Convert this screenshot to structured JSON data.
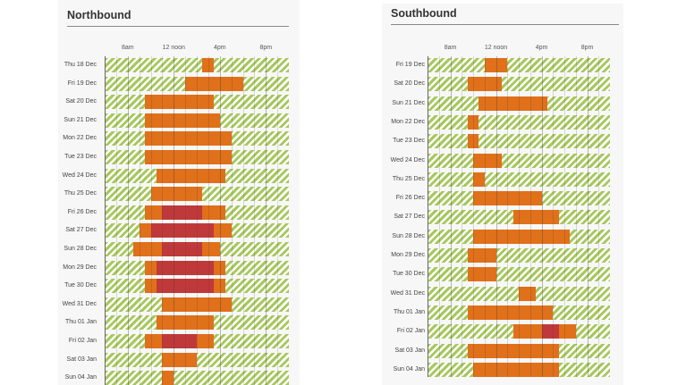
{
  "colors": {
    "free_flow": "#a6c85c",
    "congestion": "#e0701a",
    "severe": "#c0393a"
  },
  "chart_data": [
    {
      "type": "bar",
      "subtype": "horizontal-range",
      "title": "Northbound",
      "x_range_hours": [
        6,
        22
      ],
      "x_ticks": [
        {
          "hour": 8,
          "label": "8am"
        },
        {
          "hour": 12,
          "label": "12 noon"
        },
        {
          "hour": 16,
          "label": "4pm"
        },
        {
          "hour": 20,
          "label": "8pm"
        }
      ],
      "grid": true,
      "rows": [
        {
          "label": "Thu 18 Dec",
          "congestion": [
            14.5,
            15.5
          ],
          "severe": null
        },
        {
          "label": "Fri 19 Dec",
          "congestion": [
            13,
            18
          ],
          "severe": null
        },
        {
          "label": "Sat 20 Dec",
          "congestion": [
            9.5,
            15.5
          ],
          "severe": null
        },
        {
          "label": "Sun 21 Dec",
          "congestion": [
            9.5,
            16
          ],
          "severe": null
        },
        {
          "label": "Mon 22 Dec",
          "congestion": [
            9.5,
            17
          ],
          "severe": null
        },
        {
          "label": "Tue 23 Dec",
          "congestion": [
            9.5,
            17
          ],
          "severe": null
        },
        {
          "label": "Wed 24 Dec",
          "congestion": [
            10.5,
            16.5
          ],
          "severe": null
        },
        {
          "label": "Thu 25 Dec",
          "congestion": [
            10,
            14.5
          ],
          "severe": null
        },
        {
          "label": "Fri 26 Dec",
          "congestion": [
            9.5,
            16.5
          ],
          "severe": [
            11,
            14.5
          ]
        },
        {
          "label": "Sat 27 Dec",
          "congestion": [
            9,
            17
          ],
          "severe": [
            10,
            15.5
          ]
        },
        {
          "label": "Sun 28 Dec",
          "congestion": [
            8.5,
            16
          ],
          "severe": [
            11,
            14.5
          ]
        },
        {
          "label": "Mon 29 Dec",
          "congestion": [
            9.5,
            16.5
          ],
          "severe": [
            10.5,
            15.5
          ]
        },
        {
          "label": "Tue 30 Dec",
          "congestion": [
            9.5,
            16.5
          ],
          "severe": [
            10.5,
            15.5
          ]
        },
        {
          "label": "Wed 31 Dec",
          "congestion": [
            11,
            17
          ],
          "severe": null
        },
        {
          "label": "Thu 01 Jan",
          "congestion": [
            10.5,
            15.5
          ],
          "severe": null
        },
        {
          "label": "Fri 02 Jan",
          "congestion": [
            9.5,
            15.5
          ],
          "severe": [
            11,
            14
          ]
        },
        {
          "label": "Sat 03 Jan",
          "congestion": [
            11,
            14
          ],
          "severe": null
        },
        {
          "label": "Sun 04 Jan",
          "congestion": [
            11,
            12
          ],
          "severe": null
        }
      ]
    },
    {
      "type": "bar",
      "subtype": "horizontal-range",
      "title": "Southbound",
      "x_range_hours": [
        6,
        22
      ],
      "x_ticks": [
        {
          "hour": 8,
          "label": "8am"
        },
        {
          "hour": 12,
          "label": "12 noon"
        },
        {
          "hour": 16,
          "label": "4pm"
        },
        {
          "hour": 20,
          "label": "8pm"
        }
      ],
      "grid": true,
      "rows": [
        {
          "label": "Fri 19 Dec",
          "congestion": [
            11,
            13
          ],
          "severe": null
        },
        {
          "label": "Sat 20 Dec",
          "congestion": [
            9.5,
            12.5
          ],
          "severe": null
        },
        {
          "label": "Sun 21 Dec",
          "congestion": [
            10.5,
            16.5
          ],
          "severe": null
        },
        {
          "label": "Mon 22 Dec",
          "congestion": [
            9.5,
            10.5
          ],
          "severe": null
        },
        {
          "label": "Tue 23 Dec",
          "congestion": [
            9.5,
            10.5
          ],
          "severe": null
        },
        {
          "label": "Wed 24 Dec",
          "congestion": [
            10,
            12.5
          ],
          "severe": null
        },
        {
          "label": "Thu 25 Dec",
          "congestion": [
            10,
            11
          ],
          "severe": null
        },
        {
          "label": "Fri 26 Dec",
          "congestion": [
            10,
            16
          ],
          "severe": null
        },
        {
          "label": "Sat 27 Dec",
          "congestion": [
            13.5,
            17.5
          ],
          "severe": null
        },
        {
          "label": "Sun 28 Dec",
          "congestion": [
            10,
            18.5
          ],
          "severe": null
        },
        {
          "label": "Mon 29 Dec",
          "congestion": [
            9.5,
            12
          ],
          "severe": null
        },
        {
          "label": "Tue 30 Dec",
          "congestion": [
            9.5,
            12
          ],
          "severe": null
        },
        {
          "label": "Wed 31 Dec",
          "congestion": [
            14,
            15.5
          ],
          "severe": null
        },
        {
          "label": "Thu 01 Jan",
          "congestion": [
            9.5,
            17
          ],
          "severe": null
        },
        {
          "label": "Fri 02 Jan",
          "congestion": [
            13.5,
            19
          ],
          "severe": [
            16,
            17.5
          ]
        },
        {
          "label": "Sat 03 Jan",
          "congestion": [
            9.5,
            17.5
          ],
          "severe": null
        },
        {
          "label": "Sun 04 Jan",
          "congestion": [
            10,
            17.5
          ],
          "severe": null
        }
      ]
    }
  ]
}
